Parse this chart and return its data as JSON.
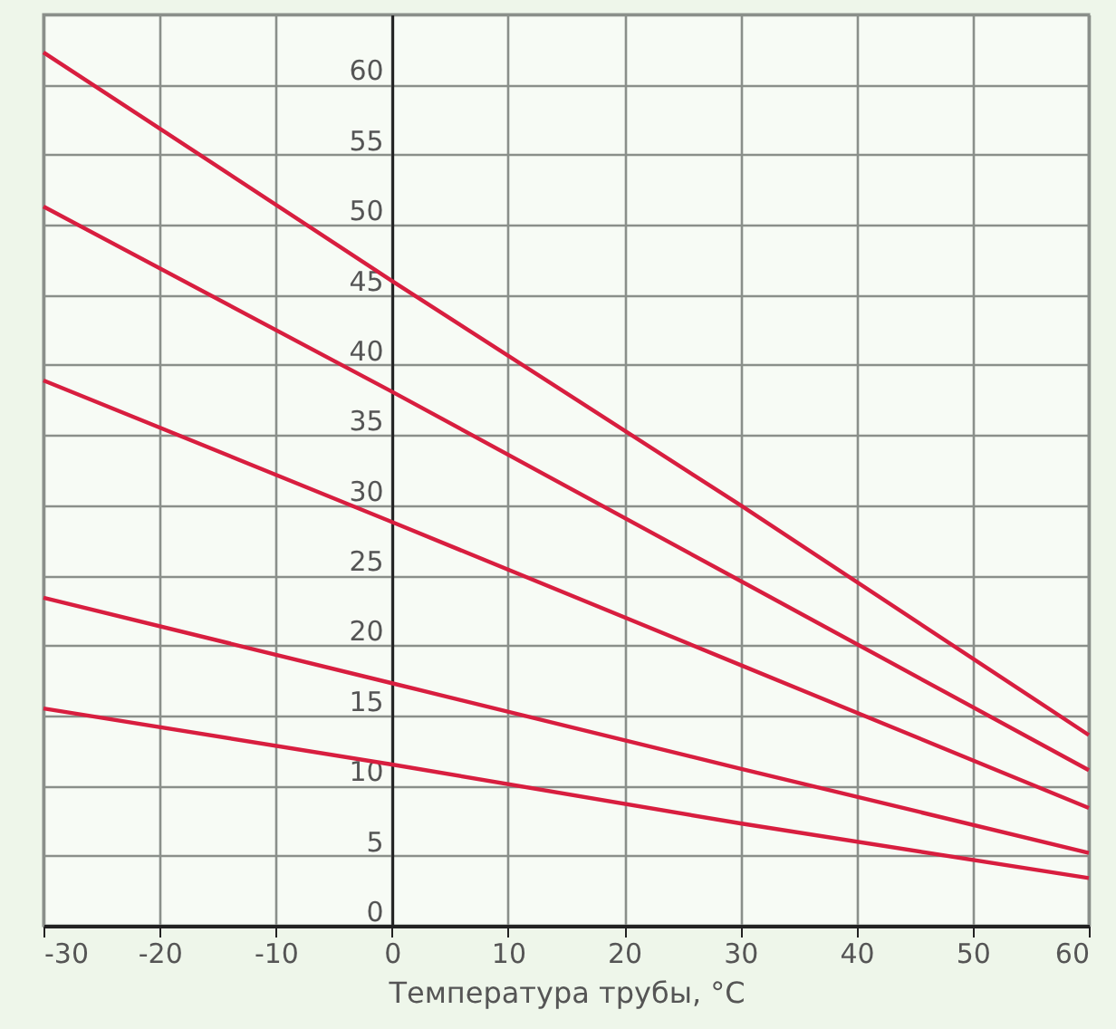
{
  "chart_data": {
    "type": "line",
    "xlabel": "Температура трубы, °C",
    "xlim": [
      -30,
      60
    ],
    "xticks": [
      -30,
      -20,
      -10,
      0,
      10,
      20,
      30,
      40,
      50,
      60
    ],
    "ylim": [
      0,
      65
    ],
    "yticks": [
      0,
      5,
      10,
      15,
      20,
      25,
      30,
      35,
      40,
      45,
      50,
      55,
      60,
      {
        "value": 65,
        "label": null
      }
    ],
    "grid": true,
    "legend": false,
    "x": [
      -30,
      0,
      30,
      60
    ],
    "series": [
      {
        "color": "#d81e3f",
        "values": [
          62.3,
          46,
          30,
          13.6
        ]
      },
      {
        "color": "#d81e3f",
        "values": [
          51.3,
          38.1,
          24.6,
          11.1
        ]
      },
      {
        "color": "#d81e3f",
        "values": [
          38.9,
          28.8,
          18.6,
          8.4
        ]
      },
      {
        "color": "#d81e3f",
        "values": [
          23.4,
          17.3,
          11.2,
          5.2
        ]
      },
      {
        "color": "#d81e3f",
        "values": [
          15.5,
          11.5,
          7.3,
          3.4
        ]
      }
    ]
  }
}
